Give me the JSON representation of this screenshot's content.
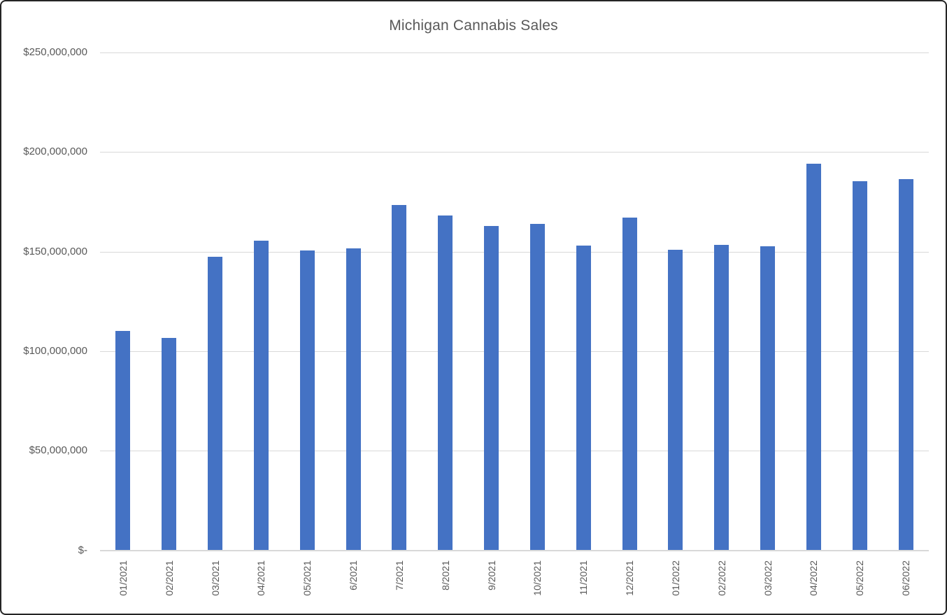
{
  "window": {
    "background": "#ffffff",
    "border_color": "#242424"
  },
  "chart_data": {
    "type": "bar",
    "title": "Michigan Cannabis Sales",
    "categories": [
      "01/2021",
      "02/2021",
      "03/2021",
      "04/2021",
      "05/2021",
      "6/2021",
      "7/2021",
      "8/2021",
      "9/2021",
      "10/2021",
      "11/2021",
      "12/2021",
      "01/2022",
      "02/2022",
      "03/2022",
      "04/2022",
      "05/2022",
      "06/2022"
    ],
    "values": [
      110000000,
      106500000,
      147500000,
      155500000,
      150500000,
      151500000,
      173500000,
      168000000,
      163000000,
      164000000,
      153000000,
      167000000,
      151000000,
      153500000,
      152500000,
      194000000,
      185500000,
      186500000
    ],
    "xlabel": "",
    "ylabel": "",
    "ylim": [
      0,
      250000000
    ],
    "y_ticks": [
      {
        "value": 0,
        "label": "$-"
      },
      {
        "value": 50000000,
        "label": "$50,000,000"
      },
      {
        "value": 100000000,
        "label": "$100,000,000"
      },
      {
        "value": 150000000,
        "label": "$150,000,000"
      },
      {
        "value": 200000000,
        "label": "$200,000,000"
      },
      {
        "value": 250000000,
        "label": "$250,000,000"
      }
    ],
    "grid": true,
    "legend": "none",
    "bar_color": "#4472C4",
    "gridline_color": "#D9D9D9",
    "text_color": "#595959"
  }
}
